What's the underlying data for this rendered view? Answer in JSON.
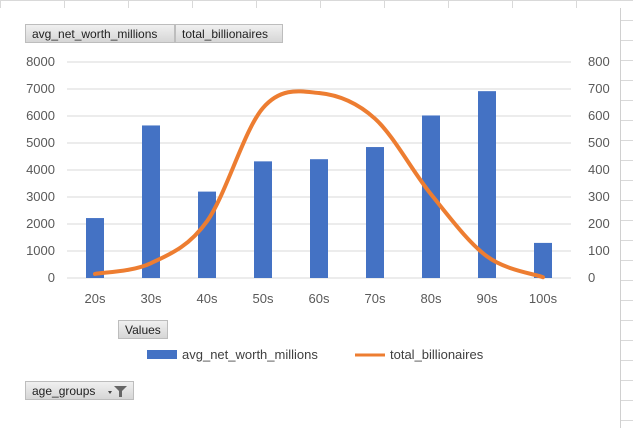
{
  "field_buttons": {
    "avg": "avg_net_worth_millions",
    "total": "total_billionaires",
    "values": "Values",
    "age_groups": "age_groups"
  },
  "colors": {
    "bar": "#4472C4",
    "line": "#ED7D31",
    "grid": "#d9d9d9"
  },
  "chart_data": {
    "type": "bar",
    "categories": [
      "20s",
      "30s",
      "40s",
      "50s",
      "60s",
      "70s",
      "80s",
      "90s",
      "100s"
    ],
    "series": [
      {
        "name": "avg_net_worth_millions",
        "type": "bar",
        "axis": "left",
        "values": [
          2220,
          5650,
          3200,
          4320,
          4400,
          4850,
          6020,
          6920,
          1300
        ]
      },
      {
        "name": "total_billionaires",
        "type": "line",
        "axis": "right",
        "values": [
          15,
          55,
          210,
          630,
          685,
          590,
          310,
          80,
          3
        ]
      }
    ],
    "ylim_left": [
      0,
      8000
    ],
    "ylim_right": [
      0,
      800
    ],
    "yticks_left": [
      "0",
      "1000",
      "2000",
      "3000",
      "4000",
      "5000",
      "6000",
      "7000",
      "8000"
    ],
    "yticks_right": [
      "0",
      "100",
      "200",
      "300",
      "400",
      "500",
      "600",
      "700",
      "800"
    ],
    "grid": true,
    "legend": "bottom"
  }
}
